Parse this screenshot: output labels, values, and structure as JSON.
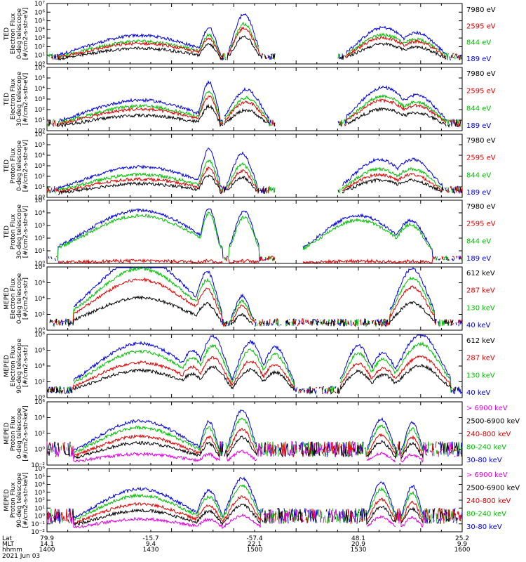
{
  "chart_data": [
    {
      "type": "line",
      "ylabel": [
        "TED",
        "Electron Flux",
        "0-deg telescope",
        "[#/cm2-s-str-eV]"
      ],
      "y_scale": "log",
      "ylim": [
        1,
        10000000
      ],
      "tick_labels": [
        "10⁰",
        "10¹",
        "10²",
        "10³",
        "10⁴",
        "10⁵",
        "10⁶",
        "10⁷"
      ],
      "legend": [
        "7980 eV",
        "2595 eV",
        "844 eV",
        "189 eV"
      ],
      "colors": [
        "#000000",
        "#e00000",
        "#00c000",
        "#0000e0"
      ]
    },
    {
      "type": "line",
      "ylabel": [
        "TED",
        "Electron Flux",
        "30-deg telescope",
        "[#/cm2-s-str-eV]"
      ],
      "y_scale": "log",
      "ylim": [
        1,
        1000000
      ],
      "tick_labels": [
        "10⁰",
        "10¹",
        "10²",
        "10³",
        "10⁴",
        "10⁵",
        "10⁶"
      ],
      "legend": [
        "7980 eV",
        "2595 eV",
        "844 eV",
        "189 eV"
      ],
      "colors": [
        "#000000",
        "#e00000",
        "#00c000",
        "#0000e0"
      ]
    },
    {
      "type": "line",
      "ylabel": [
        "TED",
        "Proton Flux",
        "0-deg telescope",
        "[#/cm2-s-str-eV]"
      ],
      "y_scale": "log",
      "ylim": [
        1,
        1000000
      ],
      "tick_labels": [
        "10⁰",
        "10¹",
        "10²",
        "10³",
        "10⁴",
        "10⁵",
        "10⁶"
      ],
      "legend": [
        "7980 eV",
        "2595 eV",
        "844 eV",
        "189 eV"
      ],
      "colors": [
        "#000000",
        "#e00000",
        "#00c000",
        "#0000e0"
      ]
    },
    {
      "type": "line",
      "ylabel": [
        "TED",
        "Proton Flux",
        "30-deg telescope",
        "[#/cm2-s-str-eV]"
      ],
      "y_scale": "log",
      "ylim": [
        1,
        100000
      ],
      "tick_labels": [
        "10⁰",
        "10¹",
        "10²",
        "10³",
        "10⁴",
        "10⁵"
      ],
      "legend": [
        "7980 eV",
        "2595 eV",
        "844 eV",
        "189 eV"
      ],
      "colors": [
        "#000000",
        "#e00000",
        "#00c000",
        "#0000e0"
      ]
    },
    {
      "type": "line",
      "ylabel": [
        "MEPED",
        "Electron Flux",
        "0-deg telescope",
        "[#/cm2-s-str]"
      ],
      "y_scale": "log",
      "ylim": [
        1,
        10000000
      ],
      "tick_labels": [
        "10⁰",
        "10²",
        "10⁴",
        "10⁶",
        "10⁸"
      ],
      "legend": [
        "612 keV",
        "287 keV",
        "130 keV",
        "40 keV"
      ],
      "colors": [
        "#000000",
        "#e00000",
        "#00c000",
        "#0000e0"
      ]
    },
    {
      "type": "line",
      "ylabel": [
        "MEPED",
        "Electron Flux",
        "90-deg telescope",
        "[#/cm2-s-str]"
      ],
      "y_scale": "log",
      "ylim": [
        1,
        10000000
      ],
      "tick_labels": [
        "10⁰",
        "10²",
        "10⁴",
        "10⁶",
        "10⁸"
      ],
      "legend": [
        "612 keV",
        "287 keV",
        "130 keV",
        "40 keV"
      ],
      "colors": [
        "#000000",
        "#e00000",
        "#00c000",
        "#0000e0"
      ]
    },
    {
      "type": "line",
      "ylabel": [
        "MEPED",
        "Proton Flux",
        "0-deg telescope",
        "[#/cm2-s-str-keV]"
      ],
      "y_scale": "log",
      "ylim": [
        0.01,
        1000000
      ],
      "tick_labels": [
        "10⁻²",
        "10⁰",
        "10²",
        "10⁴",
        "10⁶"
      ],
      "legend": [
        "> 6900 keV",
        "2500-6900 keV",
        "240-800 keV",
        "80-240 keV",
        "30-80 keV"
      ],
      "colors": [
        "#e000e0",
        "#000000",
        "#e00000",
        "#00c000",
        "#0000e0"
      ]
    },
    {
      "type": "line",
      "ylabel": [
        "MEPED",
        "Proton Flux",
        "90-deg telescope",
        "[#/cm2-s-str-keV]"
      ],
      "y_scale": "log",
      "ylim": [
        0.01,
        1000000
      ],
      "tick_labels": [
        "10⁻²",
        "10⁻¹",
        "10⁰",
        "10¹",
        "10²",
        "10³",
        "10⁴",
        "10⁵",
        "10⁶"
      ],
      "legend": [
        "> 6900 keV",
        "2500-6900 keV",
        "240-800 keV",
        "80-240 keV",
        "30-80 keV"
      ],
      "colors": [
        "#e000e0",
        "#000000",
        "#e00000",
        "#00c000",
        "#0000e0"
      ]
    }
  ],
  "x_axis": {
    "rows": [
      {
        "label": "Lat",
        "values": [
          "79.9",
          "-15.7",
          "-57.4",
          "48.1",
          "25.2"
        ]
      },
      {
        "label": "MLT",
        "values": [
          "14.1",
          "9.4",
          "22.1",
          "20.9",
          "9.9"
        ]
      },
      {
        "label": "hhmm",
        "values": [
          "1400",
          "1430",
          "1500",
          "1530",
          "1600"
        ]
      }
    ],
    "date": "2021 Jun 03"
  }
}
